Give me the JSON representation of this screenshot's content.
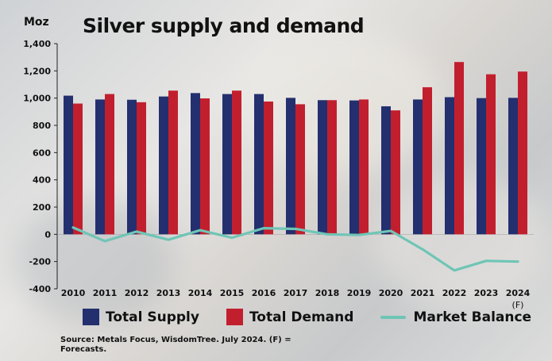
{
  "chart_data": {
    "type": "bar",
    "title": "Silver supply and demand",
    "unit_label": "Moz",
    "categories": [
      "2010",
      "2011",
      "2012",
      "2013",
      "2014",
      "2015",
      "2016",
      "2017",
      "2018",
      "2019",
      "2020",
      "2021",
      "2022",
      "2023",
      "2024"
    ],
    "forecast_marker": "(F)",
    "y_ticks": [
      -400,
      -200,
      0,
      200,
      400,
      600,
      800,
      1000,
      1200,
      1400
    ],
    "y_tick_labels": [
      "-400",
      "-200",
      "0",
      "200",
      "400",
      "600",
      "800",
      "1,000",
      "1,200",
      "1,400"
    ],
    "ylim": [
      -400,
      1400
    ],
    "series": [
      {
        "name": "Total Supply",
        "kind": "bar",
        "color": "#232f6e",
        "values": [
          1018,
          990,
          988,
          1012,
          1037,
          1030,
          1030,
          1002,
          985,
          983,
          940,
          990,
          1007,
          1000,
          1002
        ]
      },
      {
        "name": "Total Demand",
        "kind": "bar",
        "color": "#c21f2e",
        "values": [
          960,
          1030,
          970,
          1055,
          998,
          1055,
          975,
          955,
          985,
          990,
          910,
          1080,
          1265,
          1175,
          1195
        ]
      },
      {
        "name": "Market Balance",
        "kind": "line",
        "color": "#6fc5b6",
        "values": [
          50,
          -50,
          20,
          -40,
          30,
          -25,
          45,
          40,
          0,
          -5,
          25,
          -110,
          -265,
          -195,
          -200
        ]
      }
    ]
  },
  "legend": {
    "supply": "Total Supply",
    "demand": "Total Demand",
    "balance": "Market Balance"
  },
  "source": "Source: Metals Focus, WisdomTree. July 2024. (F) = Forecasts."
}
